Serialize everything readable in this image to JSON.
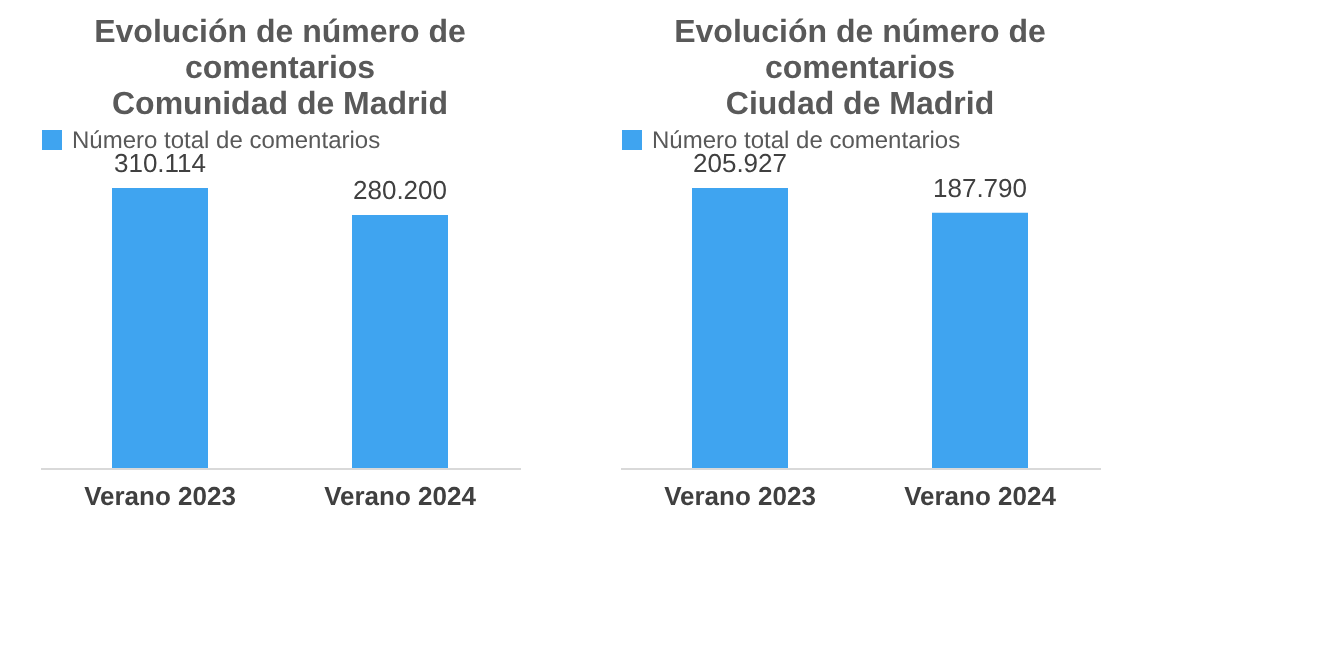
{
  "chart_data": [
    {
      "type": "bar",
      "title": "Evolución de número de\ncomentarios\nComunidad de Madrid",
      "categories": [
        "Verano 2023",
        "Verano 2024"
      ],
      "series": [
        {
          "name": "Número total de comentarios",
          "color": "#3fa4f0",
          "values": [
            310114,
            280200
          ],
          "value_labels": [
            "310.114",
            "280.200"
          ]
        }
      ],
      "tick_labels": "x",
      "grid": false,
      "legend": "top"
    },
    {
      "type": "bar",
      "title": "Evolución de número de\ncomentarios\nCiudad de Madrid",
      "categories": [
        "Verano 2023",
        "Verano 2024"
      ],
      "series": [
        {
          "name": "Número total de comentarios",
          "color": "#3fa4f0",
          "values": [
            205927,
            187790
          ],
          "value_labels": [
            "205.927",
            "187.790"
          ]
        }
      ],
      "tick_labels": "x",
      "grid": false,
      "legend": "top"
    }
  ]
}
